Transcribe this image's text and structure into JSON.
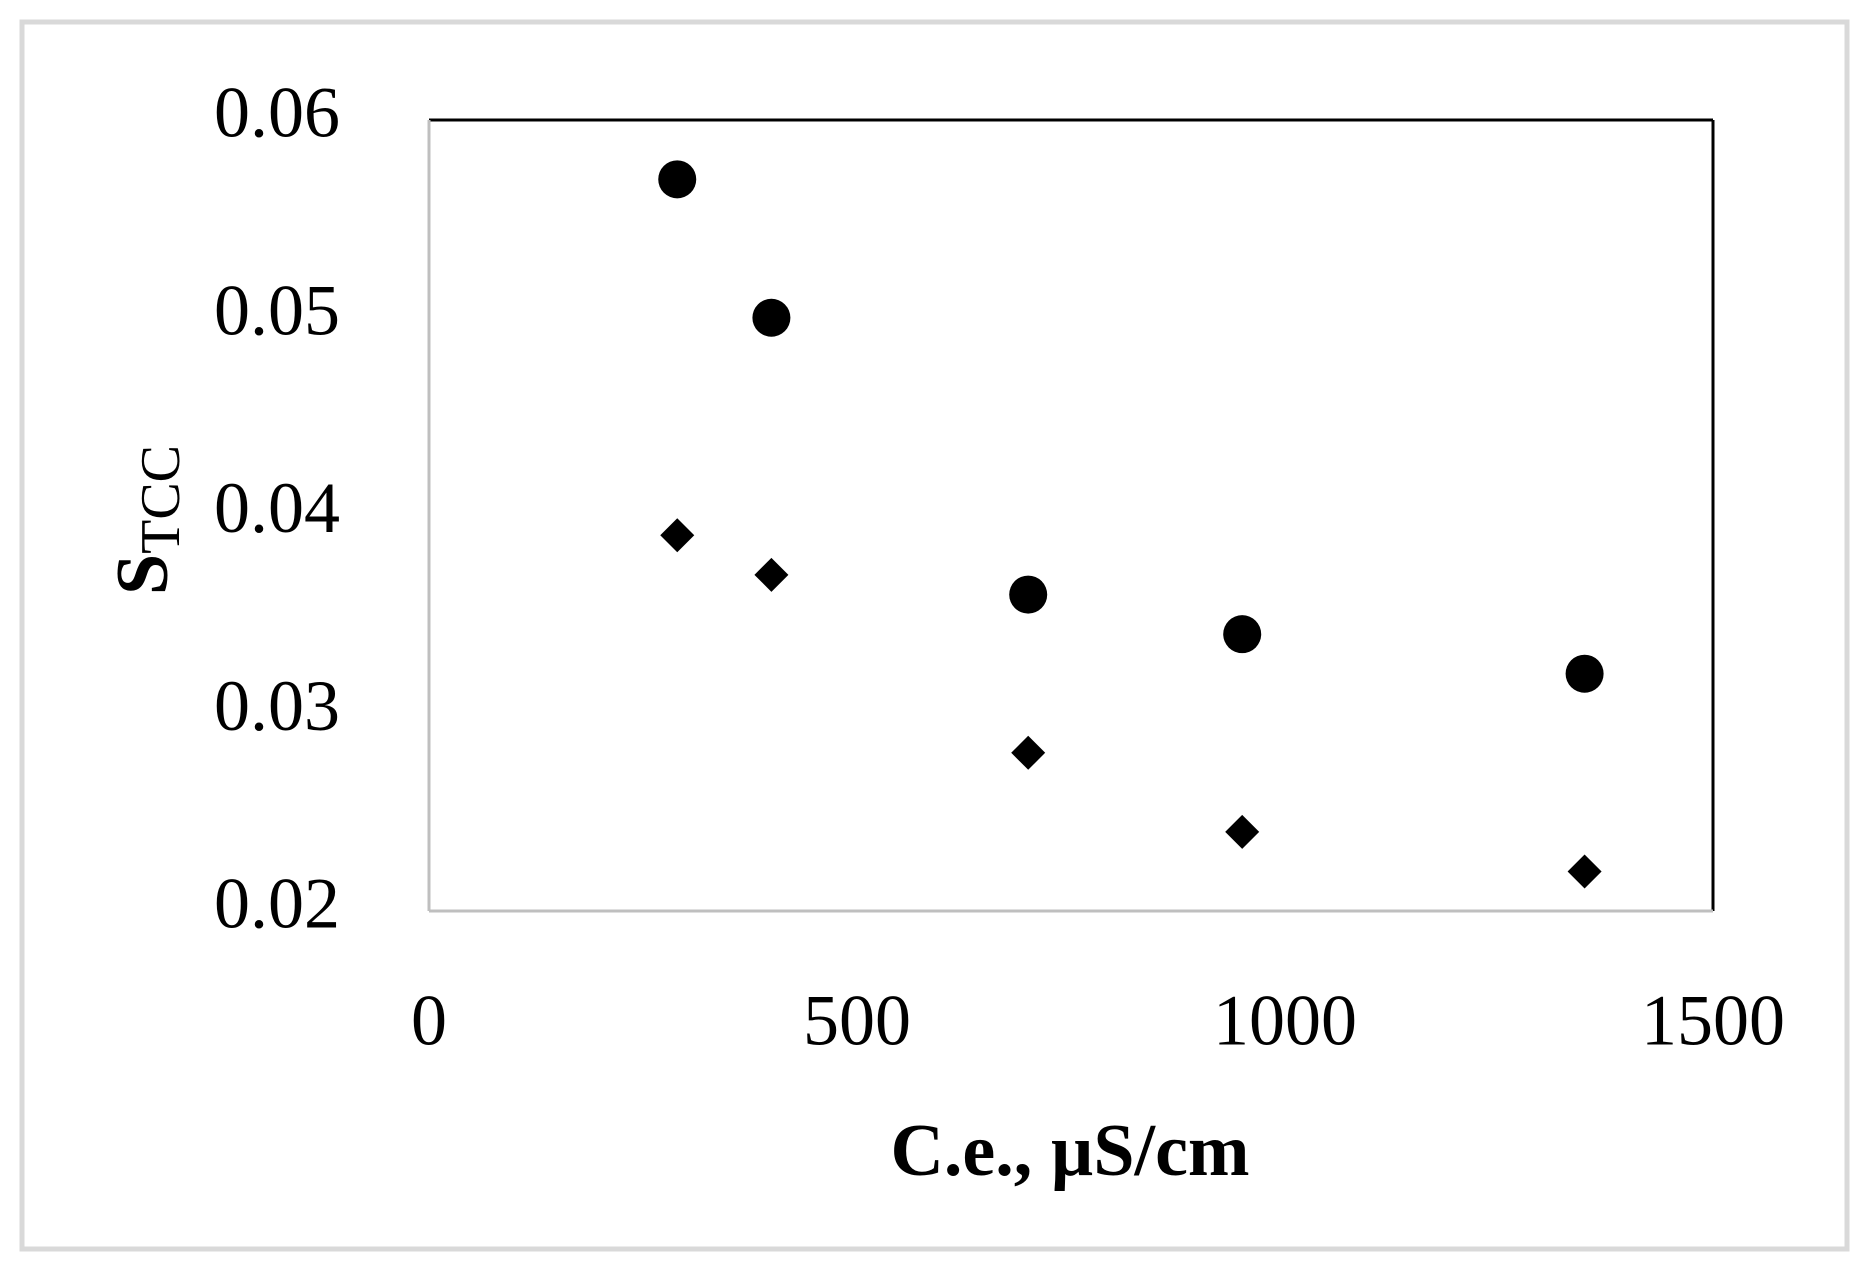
{
  "chart_data": {
    "type": "scatter",
    "x_label": "C.e., µS/cm",
    "y_label": {
      "main": "S",
      "subscript": "TCC"
    },
    "series": [
      {
        "color": "#000000",
        "marker": "circle",
        "x": [
          290,
          400,
          700,
          950,
          1350
        ],
        "values": [
          0.057,
          0.05,
          0.036,
          0.034,
          0.032
        ]
      },
      {
        "color": "#000000",
        "marker": "diamond",
        "x": [
          290,
          400,
          700,
          950,
          1350
        ],
        "values": [
          0.039,
          0.037,
          0.028,
          0.024,
          0.022
        ]
      }
    ],
    "xlim": [
      0,
      1500
    ],
    "xticks": [
      0,
      500,
      1000,
      1500
    ],
    "ylim": [
      0.02,
      0.06
    ],
    "yticks": [
      0.02,
      0.03,
      0.04,
      0.05,
      0.06
    ],
    "grid": false
  }
}
